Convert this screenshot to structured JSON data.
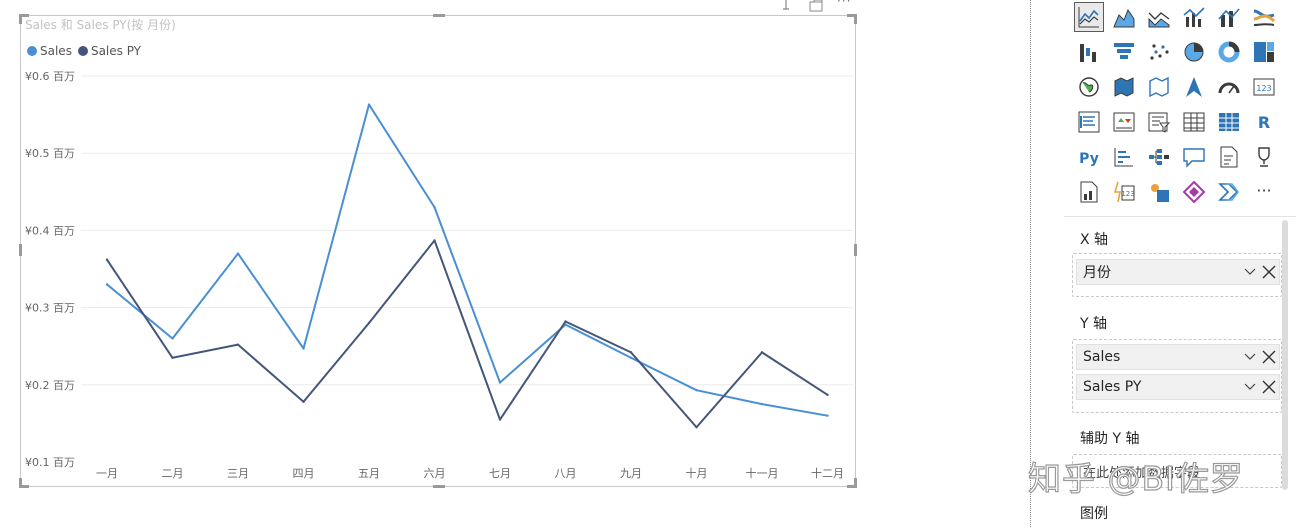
{
  "visual": {
    "title": "Sales 和 Sales PY(按 月份)",
    "legend": [
      {
        "label": "Sales",
        "color": "#4A8FD4"
      },
      {
        "label": "Sales PY",
        "color": "#44567A"
      }
    ]
  },
  "chart_data": {
    "type": "line",
    "title": "Sales 和 Sales PY(按 月份)",
    "categories": [
      "一月",
      "二月",
      "三月",
      "四月",
      "五月",
      "六月",
      "七月",
      "八月",
      "九月",
      "十月",
      "十一月",
      "十二月"
    ],
    "series": [
      {
        "name": "Sales",
        "color": "#4A8FD4",
        "values": [
          0.33,
          0.26,
          0.37,
          0.247,
          0.563,
          0.43,
          0.203,
          0.278,
          0.235,
          0.193,
          0.175,
          0.16
        ]
      },
      {
        "name": "Sales PY",
        "color": "#44567A",
        "values": [
          0.362,
          0.235,
          0.252,
          0.178,
          0.28,
          0.387,
          0.155,
          0.282,
          0.242,
          0.145,
          0.242,
          0.187
        ]
      }
    ],
    "yticks": [
      "¥0.6 百万",
      "¥0.5 百万",
      "¥0.4 百万",
      "¥0.3 百万",
      "¥0.2 百万",
      "¥0.1 百万"
    ],
    "ytick_values": [
      0.6,
      0.5,
      0.4,
      0.3,
      0.2,
      0.1
    ],
    "ylim": [
      0.1,
      0.6
    ],
    "grid": true,
    "legend_position": "top-left"
  },
  "pane": {
    "icons": [
      "line-chart-icon",
      "area-chart-icon",
      "stacked-area-chart-icon",
      "line-clustered-column-icon",
      "line-stacked-column-icon",
      "ribbon-chart-icon",
      "waterfall-chart-icon",
      "funnel-chart-icon",
      "scatter-chart-icon",
      "pie-chart-icon",
      "donut-chart-icon",
      "treemap-icon",
      "map-icon",
      "filled-map-icon",
      "shape-map-icon",
      "azure-map-icon",
      "gauge-icon",
      "card-icon",
      "multi-row-card-icon",
      "kpi-icon",
      "slicer-icon",
      "table-icon",
      "matrix-icon",
      "r-script-visual-icon",
      "python-visual-icon",
      "key-influencers-icon",
      "decomposition-tree-icon",
      "qa-visual-icon",
      "smart-narrative-icon",
      "goals-icon",
      "paginated-report-icon",
      "power-apps-icon",
      "power-automate-icon",
      "arcgis-icon",
      "power-apps-diamond-icon",
      "more-visuals-icon"
    ],
    "r_label": "R",
    "py_label": "Py",
    "card_label": "123",
    "more_label": "···",
    "x_axis": {
      "label": "X 轴",
      "fields": [
        "月份"
      ]
    },
    "y_axis": {
      "label": "Y 轴",
      "fields": [
        "Sales",
        "Sales PY"
      ]
    },
    "secondary_y": {
      "label": "辅助 Y 轴",
      "hint": "在此处添加数据字段"
    },
    "legend_label": "图例"
  },
  "watermark": "知乎 @BI佐罗"
}
